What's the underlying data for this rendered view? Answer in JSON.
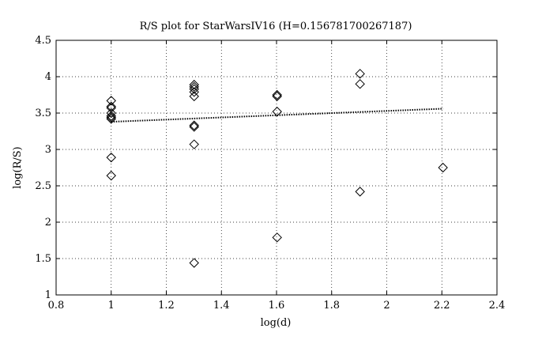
{
  "chart_data": {
    "type": "scatter",
    "title": "R/S plot for StarWarsIV16 (H=0.156781700267187)",
    "xlabel": "log(d)",
    "ylabel": "log(R/S)",
    "xlim": [
      0.8,
      2.4
    ],
    "ylim": [
      1,
      4.5
    ],
    "xticks": [
      "0.8",
      "1",
      "1.2",
      "1.4",
      "1.6",
      "1.8",
      "2",
      "2.2",
      "2.4"
    ],
    "yticks": [
      "1",
      "1.5",
      "2",
      "2.5",
      "3",
      "3.5",
      "4",
      "4.5"
    ],
    "grid": true,
    "series": [
      {
        "marker": "diamond",
        "points": [
          [
            1.0,
            3.67
          ],
          [
            1.0,
            3.59
          ],
          [
            1.0,
            3.57
          ],
          [
            1.0,
            3.5
          ],
          [
            1.0,
            3.46
          ],
          [
            1.0,
            3.44
          ],
          [
            1.0,
            3.42
          ],
          [
            1.0,
            2.89
          ],
          [
            1.0,
            2.64
          ],
          [
            1.301,
            3.89
          ],
          [
            1.301,
            3.86
          ],
          [
            1.301,
            3.83
          ],
          [
            1.301,
            3.79
          ],
          [
            1.301,
            3.73
          ],
          [
            1.301,
            3.33
          ],
          [
            1.301,
            3.31
          ],
          [
            1.301,
            3.07
          ],
          [
            1.301,
            1.44
          ],
          [
            1.602,
            3.75
          ],
          [
            1.602,
            3.73
          ],
          [
            1.602,
            3.52
          ],
          [
            1.602,
            1.79
          ],
          [
            1.903,
            4.04
          ],
          [
            1.903,
            3.9
          ],
          [
            1.903,
            2.42
          ],
          [
            2.204,
            2.75
          ]
        ]
      },
      {
        "line_style": "dotted",
        "points": [
          [
            1.0,
            3.38
          ],
          [
            2.204,
            3.56
          ]
        ]
      }
    ]
  }
}
